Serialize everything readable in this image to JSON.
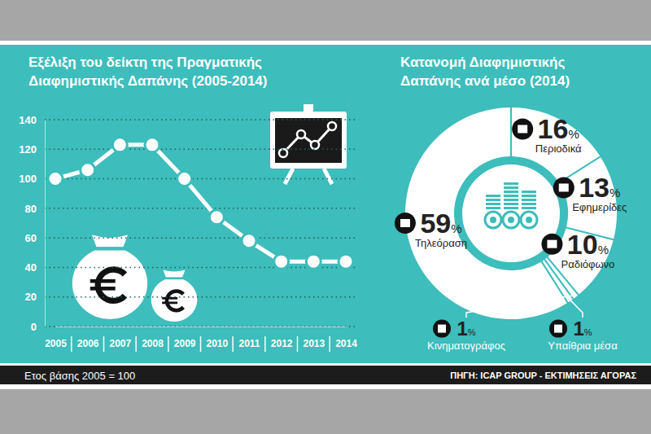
{
  "chart_data": [
    {
      "type": "line",
      "title": "Εξέλιξη του δείκτη της Πραγματικής Διαφημιστικής Δαπάνης (2005-2014)",
      "categories": [
        "2005",
        "2006",
        "2007",
        "2008",
        "2009",
        "2010",
        "2011",
        "2012",
        "2013",
        "2014"
      ],
      "values": [
        100,
        106,
        123,
        123,
        100,
        74,
        58,
        44,
        44,
        44
      ],
      "color": "#ffffff",
      "marker": "circle",
      "ylim": [
        0,
        140
      ],
      "yticks": [
        0,
        20,
        40,
        60,
        80,
        100,
        120,
        140
      ],
      "grid": true
    },
    {
      "type": "donut",
      "title": "Κατανομή Διαφημιστικής Δαπάνης ανά μέσο (2014)",
      "categories": [
        "Περιοδικά",
        "Εφημερίδες",
        "Ραδιόφωνο",
        "Κινηματογράφος",
        "Υπαίθρια μέσα",
        "Τηλεόραση"
      ],
      "values": [
        16,
        13,
        10,
        1,
        1,
        59
      ],
      "value_labels": [
        "16%",
        "13%",
        "10%",
        "1%",
        "1%",
        "59%"
      ],
      "data_labels": true,
      "color": "#ffffff"
    }
  ],
  "footer": {
    "note": "Ετος βάσης 2005 = 100",
    "source": "ΠΗΓΗ: ICAP GROUP - ΕΚΤΙΜΗΣΕΙΣ ΑΓΟΡΑΣ"
  }
}
